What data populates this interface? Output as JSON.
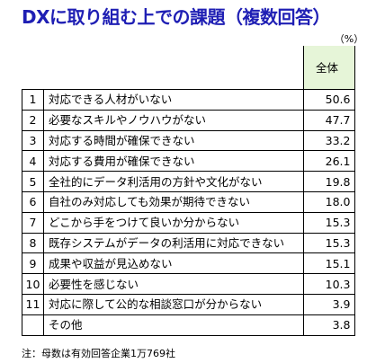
{
  "title": "DXに取り組む上での課題（複数回答）",
  "unit": "（%）",
  "column_header": "全体",
  "rows": [
    {
      "num": "1",
      "label": "対応できる人材がいない",
      "value": "50.6"
    },
    {
      "num": "2",
      "label": "必要なスキルやノウハウがない",
      "value": "47.7"
    },
    {
      "num": "3",
      "label": "対応する時間が確保できない",
      "value": "33.2"
    },
    {
      "num": "4",
      "label": "対応する費用が確保できない",
      "value": "26.1"
    },
    {
      "num": "5",
      "label": "全社的にデータ利活用の方針や文化がない",
      "value": "19.8"
    },
    {
      "num": "6",
      "label": "自社のみ対応しても効果が期待できない",
      "value": "18.0"
    },
    {
      "num": "7",
      "label": "どこから手をつけて良いか分からない",
      "value": "15.3"
    },
    {
      "num": "8",
      "label": "既存システムがデータの利活用に対応できない",
      "value": "15.3"
    },
    {
      "num": "9",
      "label": "成果や収益が見込めない",
      "value": "15.1"
    },
    {
      "num": "10",
      "label": "必要性を感じない",
      "value": "10.3"
    },
    {
      "num": "11",
      "label": "対応に際して公的な相談窓口が分からない",
      "value": "3.9"
    },
    {
      "num": "",
      "label": "その他",
      "value": "3.8"
    }
  ],
  "footnote": "注：母数は有効回答企業1万769社",
  "colors": {
    "title": "#1f1fb4",
    "header_bg": "#e6f5d8"
  }
}
